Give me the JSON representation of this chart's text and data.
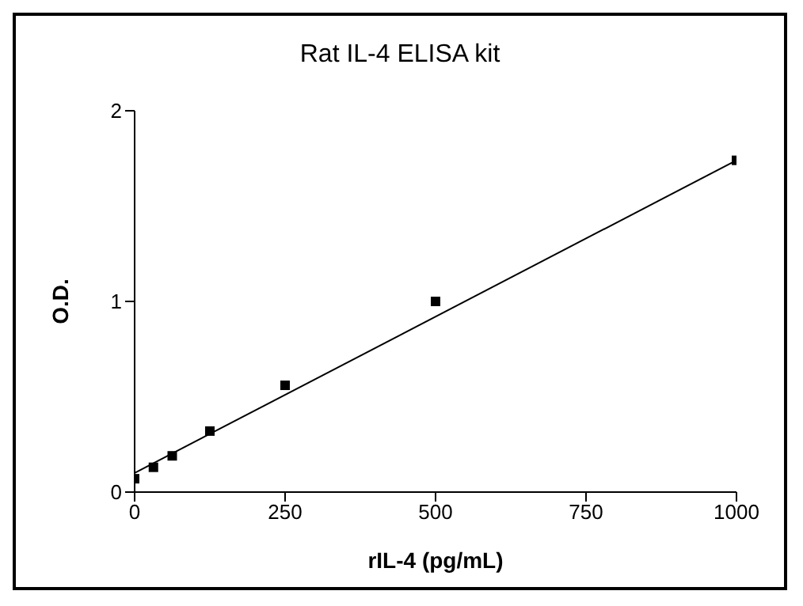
{
  "chart_data": {
    "type": "scatter",
    "title": "Rat IL-4 ELISA kit",
    "xlabel": "rIL-4 (pg/mL)",
    "ylabel": "O.D.",
    "xlim": [
      0,
      1000
    ],
    "xticks": [
      0,
      250,
      500,
      750,
      1000
    ],
    "ylim": [
      0,
      2
    ],
    "yticks": [
      0,
      1,
      2
    ],
    "grid": false,
    "series": [
      {
        "marker": "square",
        "color": "#000000",
        "x": [
          0,
          31.25,
          62.5,
          125,
          250,
          500,
          1000
        ],
        "values": [
          0.07,
          0.13,
          0.19,
          0.32,
          0.56,
          1.0,
          1.74
        ]
      },
      {
        "type": "line",
        "marker": "none",
        "color": "#000000",
        "x": [
          0,
          1000
        ],
        "values": [
          0.1,
          1.74
        ]
      }
    ]
  }
}
